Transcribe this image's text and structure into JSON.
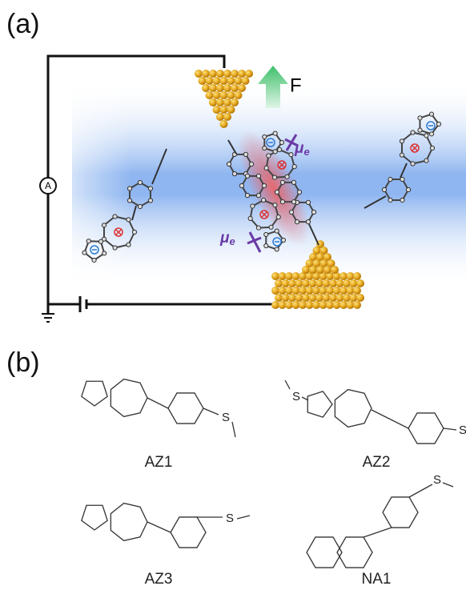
{
  "panel_a": {
    "label": "(a)",
    "force_label": "F",
    "ammeter_label": "A",
    "dipole_labels": [
      {
        "symbol": "μ",
        "subscript": "e"
      },
      {
        "symbol": "μ",
        "subscript": "e"
      }
    ]
  },
  "panel_b": {
    "label": "(b)",
    "molecules": [
      {
        "name": "AZ1",
        "atom_labels": [
          "S"
        ]
      },
      {
        "name": "AZ2",
        "atom_labels": [
          "S",
          "S"
        ]
      },
      {
        "name": "AZ3",
        "atom_labels": [
          "S"
        ]
      },
      {
        "name": "NA1",
        "atom_labels": [
          "S"
        ]
      }
    ]
  }
}
